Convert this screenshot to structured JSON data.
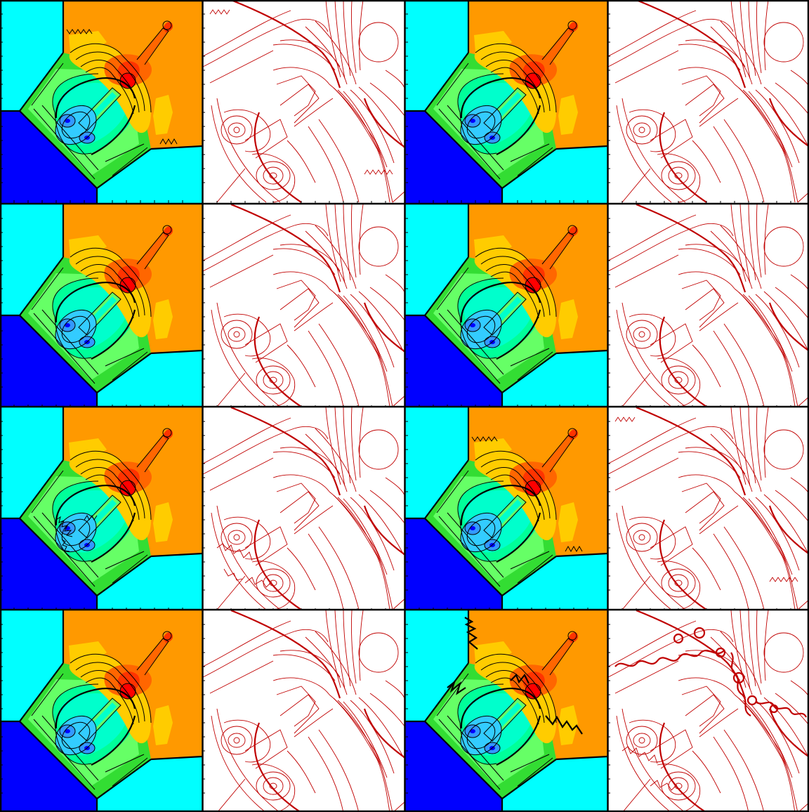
{
  "figure": {
    "rows": 4,
    "cols": 4,
    "panel_types": [
      "filled-contour",
      "line-contour",
      "filled-contour",
      "line-contour"
    ],
    "colors": {
      "far_field_light": "#00ffff",
      "far_field_dark": "#0000ff",
      "background": "#ff9900",
      "mid_green": "#33dd33",
      "light_green": "#66ff66",
      "aqua_green": "#00ff99",
      "cyan_green": "#00ffcc",
      "light_blue": "#33ccff",
      "blue": "#3399ff",
      "yellow": "#ffcc00",
      "orange_dark": "#ff6600",
      "red_orange": "#ff3300",
      "red": "#ff0000",
      "contour_line": "#000000",
      "red_contour_line": "#c00000"
    },
    "variants": [
      {
        "row": 1,
        "col_pair": 1,
        "style": "sawtooth-shock"
      },
      {
        "row": 1,
        "col_pair": 2,
        "style": "smooth"
      },
      {
        "row": 2,
        "col_pair": 1,
        "style": "smooth"
      },
      {
        "row": 2,
        "col_pair": 2,
        "style": "smooth"
      },
      {
        "row": 3,
        "col_pair": 1,
        "style": "noisy-vortex"
      },
      {
        "row": 3,
        "col_pair": 2,
        "style": "sawtooth-shock"
      },
      {
        "row": 4,
        "col_pair": 1,
        "style": "smooth"
      },
      {
        "row": 4,
        "col_pair": 2,
        "style": "unstable-interface"
      }
    ]
  }
}
